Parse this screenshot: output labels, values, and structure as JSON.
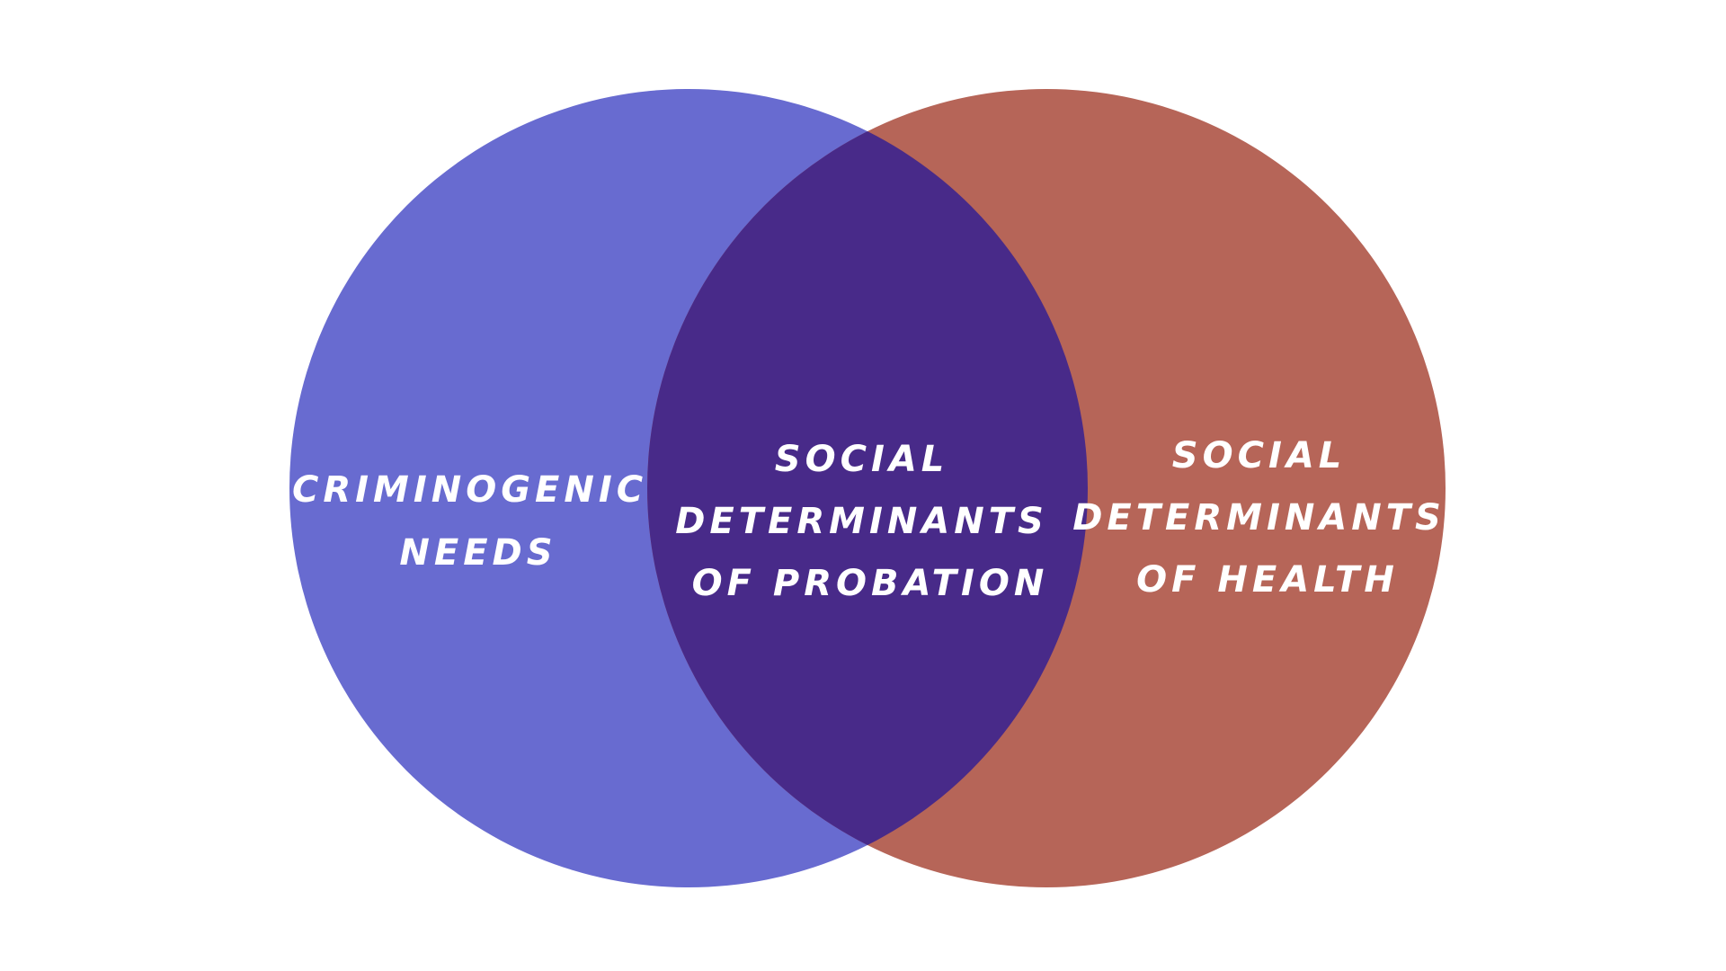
{
  "diagram": {
    "left_circle": {
      "color": "#686bd0",
      "label_lines": [
        "CRIMINOGENIC",
        "NEEDS"
      ]
    },
    "right_circle": {
      "color": "#b66558",
      "label_lines": [
        "SOCIAL",
        "DETERMINANTS",
        "OF HEALTH"
      ]
    },
    "overlap": {
      "color": "#482a89",
      "label_lines": [
        "SOCIAL",
        "DETERMINANTS",
        "OF PROBATION"
      ]
    },
    "text_color": "#ffffff"
  }
}
